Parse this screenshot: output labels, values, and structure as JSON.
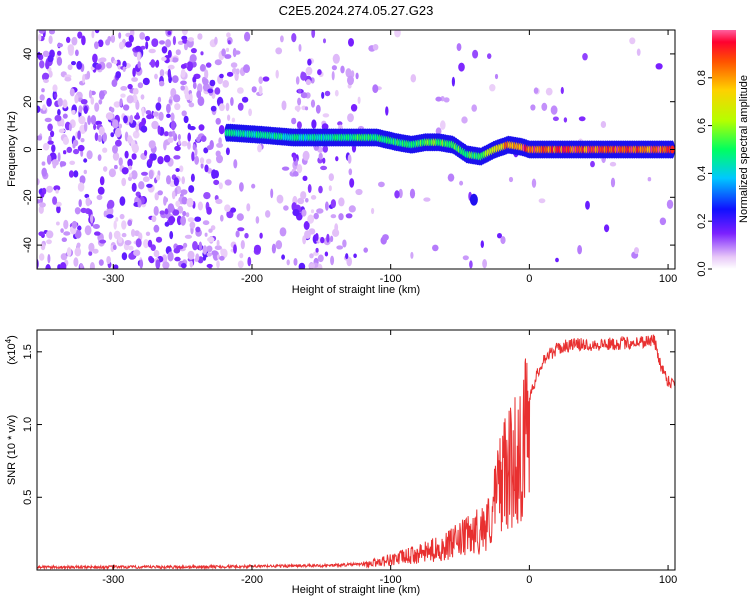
{
  "title": "C2E5.2024.274.05.27.G23",
  "chart_data": [
    {
      "type": "heatmap",
      "name": "spectrogram",
      "xlabel": "Height of straight line (km)",
      "ylabel": "Frequency (Hz)",
      "xlim": [
        -355,
        105
      ],
      "ylim": [
        -50,
        50
      ],
      "xticks": [
        "-300",
        "-200",
        "-100",
        "0",
        "100"
      ],
      "yticks": [
        "-40",
        "-20",
        "0",
        "20",
        "40"
      ],
      "colorbar": {
        "label": "Normalized spectral amplitude",
        "range": [
          0,
          1
        ],
        "ticks": [
          "0.0",
          "0.2",
          "0.4",
          "0.6",
          "0.8"
        ]
      },
      "ridge": {
        "x": [
          -215,
          -190,
          -170,
          -150,
          -130,
          -110,
          -95,
          -85,
          -75,
          -65,
          -55,
          -45,
          -35,
          -25,
          -15,
          -5,
          0,
          25,
          50,
          75,
          100
        ],
        "y": [
          7,
          6,
          5,
          5,
          5,
          5,
          3,
          2,
          3,
          3,
          2,
          -2,
          -3,
          0,
          2,
          1,
          0,
          0,
          0,
          0,
          0
        ],
        "amplitude": [
          0.45,
          0.45,
          0.45,
          0.45,
          0.5,
          0.5,
          0.5,
          0.5,
          0.55,
          0.55,
          0.55,
          0.5,
          0.55,
          0.65,
          0.85,
          0.9,
          0.9,
          0.9,
          0.9,
          0.9,
          0.9
        ]
      }
    },
    {
      "type": "line",
      "name": "snr",
      "xlabel": "Height of straight line (km)",
      "ylabel": "SNR (10 * v/v)",
      "y_multiplier": "(x10",
      "y_multiplier_exp": "4",
      "xlim": [
        -355,
        105
      ],
      "ylim": [
        0,
        1.65
      ],
      "xticks": [
        "-300",
        "-200",
        "-100",
        "0",
        "100"
      ],
      "yticks": [
        "0.5",
        "1.0",
        "1.5"
      ],
      "color": "#e83030",
      "envelope": {
        "x": [
          -355,
          -250,
          -150,
          -120,
          -100,
          -80,
          -60,
          -40,
          -30,
          -25,
          -20,
          -15,
          -10,
          -5,
          0,
          10,
          20,
          30,
          50,
          70,
          90,
          95,
          100,
          105
        ],
        "y": [
          0.02,
          0.02,
          0.03,
          0.04,
          0.08,
          0.12,
          0.18,
          0.28,
          0.35,
          0.5,
          0.75,
          0.75,
          0.85,
          0.9,
          1.2,
          1.45,
          1.52,
          1.55,
          1.55,
          1.56,
          1.58,
          1.4,
          1.3,
          1.28
        ]
      }
    }
  ]
}
